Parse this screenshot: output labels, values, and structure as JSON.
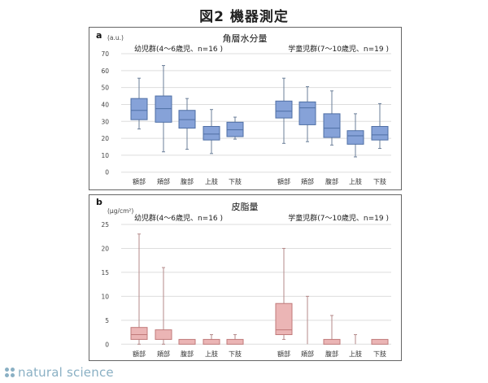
{
  "figure_title": "図2 機器測定",
  "brand": "natural science",
  "colors": {
    "a_fill": "#86a2d8",
    "a_stroke": "#4f6fa5",
    "a_whisker": "#6b7f99",
    "b_fill": "#ebb5b5",
    "b_stroke": "#c07a7a",
    "b_whisker": "#b48a8a",
    "grid": "#dddddd"
  },
  "chart_data": [
    {
      "type": "boxplot",
      "panel": "a",
      "title": "角層水分量",
      "ylabel": "(a.u.)",
      "ylim": [
        0,
        70
      ],
      "yticks": [
        0,
        10,
        20,
        30,
        40,
        50,
        60,
        70
      ],
      "grid": true,
      "groups": [
        {
          "name": "幼児群(4〜6歳児、n=16 )",
          "categories": [
            "額部",
            "頬部",
            "腹部",
            "上肢",
            "下肢"
          ],
          "boxes": [
            {
              "min": 25.5,
              "q1": 31,
              "median": 36.5,
              "q3": 43.5,
              "max": 55.5
            },
            {
              "min": 12,
              "q1": 29.5,
              "median": 37.5,
              "q3": 45,
              "max": 63
            },
            {
              "min": 13.5,
              "q1": 26,
              "median": 31,
              "q3": 36.5,
              "max": 43.5
            },
            {
              "min": 11,
              "q1": 19,
              "median": 22.5,
              "q3": 27,
              "max": 37
            },
            {
              "min": 19.5,
              "q1": 21,
              "median": 25,
              "q3": 29.5,
              "max": 32.5
            }
          ]
        },
        {
          "name": "学童児群(7〜10歳児、n=19 )",
          "categories": [
            "額部",
            "頬部",
            "腹部",
            "上肢",
            "下肢"
          ],
          "boxes": [
            {
              "min": 17,
              "q1": 32,
              "median": 36,
              "q3": 42,
              "max": 55.5
            },
            {
              "min": 18,
              "q1": 28,
              "median": 38,
              "q3": 41.5,
              "max": 50.5
            },
            {
              "min": 16,
              "q1": 20.5,
              "median": 26,
              "q3": 34.5,
              "max": 48
            },
            {
              "min": 9,
              "q1": 16.5,
              "median": 21.5,
              "q3": 24.5,
              "max": 34.5
            },
            {
              "min": 14,
              "q1": 19,
              "median": 22,
              "q3": 27,
              "max": 40.5
            }
          ]
        }
      ]
    },
    {
      "type": "boxplot",
      "panel": "b",
      "title": "皮脂量",
      "ylabel": "(μg/cm²)",
      "ylim": [
        0,
        25
      ],
      "yticks": [
        0,
        5,
        10,
        15,
        20,
        25
      ],
      "grid": true,
      "groups": [
        {
          "name": "幼児群(4〜6歳児、n=16 )",
          "categories": [
            "額部",
            "頬部",
            "腹部",
            "上肢",
            "下肢"
          ],
          "boxes": [
            {
              "min": 0,
              "q1": 1,
              "median": 2,
              "q3": 3.5,
              "max": 23
            },
            {
              "min": 0,
              "q1": 1,
              "median": 1,
              "q3": 3,
              "max": 16
            },
            {
              "min": 0,
              "q1": 0,
              "median": 0,
              "q3": 1,
              "max": 1
            },
            {
              "min": 0,
              "q1": 0,
              "median": 0,
              "q3": 1,
              "max": 2
            },
            {
              "min": 0,
              "q1": 0,
              "median": 0,
              "q3": 1,
              "max": 2
            }
          ]
        },
        {
          "name": "学童児群(7〜10歳児、n=19 )",
          "categories": [
            "額部",
            "頬部",
            "腹部",
            "上肢",
            "下肢"
          ],
          "boxes": [
            {
              "min": 1,
              "q1": 2,
              "median": 3,
              "q3": 8.5,
              "max": 20
            },
            {
              "min": 0,
              "q1": 0,
              "median": 0,
              "q3": 0,
              "max": 10
            },
            {
              "min": 0,
              "q1": 0,
              "median": 0,
              "q3": 1,
              "max": 6
            },
            {
              "min": 0,
              "q1": 0,
              "median": 0,
              "q3": 0,
              "max": 2
            },
            {
              "min": 0,
              "q1": 0,
              "median": 0,
              "q3": 1,
              "max": 1
            }
          ]
        }
      ]
    }
  ],
  "panels": {
    "a": {
      "letter": "a",
      "title": "角層水分量",
      "unit": "(a.u.)",
      "group_left": "幼児群(4〜6歳児、n=16 )",
      "group_right": "学童児群(7〜10歳児、n=19 )"
    },
    "b": {
      "letter": "b",
      "title": "皮脂量",
      "unit": "(μg/cm²)",
      "group_left": "幼児群(4〜6歳児、n=16 )",
      "group_right": "学童児群(7〜10歳児、n=19 )"
    }
  }
}
